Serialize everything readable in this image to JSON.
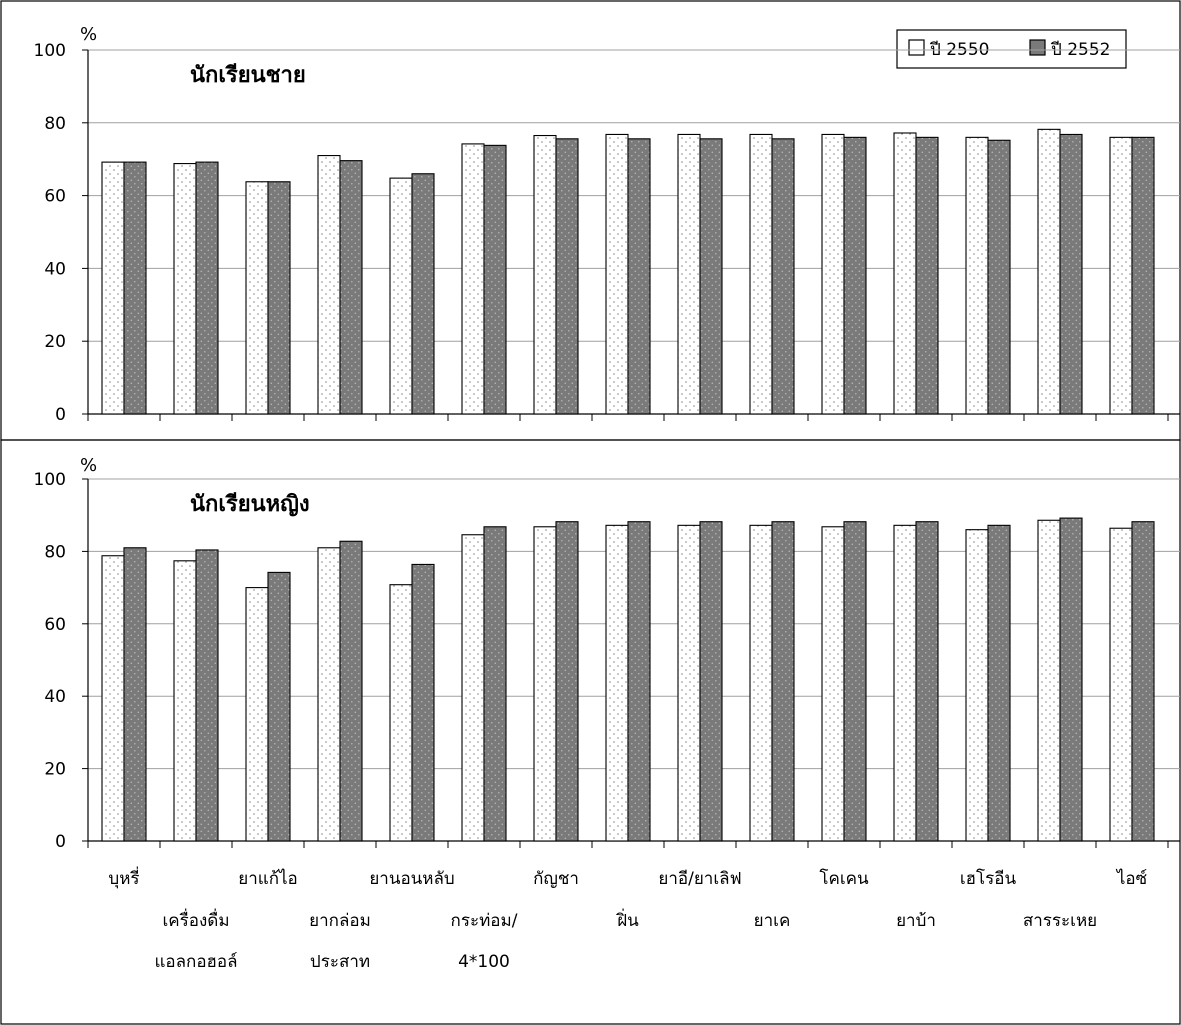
{
  "chart_data": [
    {
      "type": "bar",
      "title": "นักเรียนชาย",
      "ylabel": "%",
      "ylim": [
        0,
        100
      ],
      "yticks": [
        0,
        20,
        40,
        60,
        80,
        100
      ],
      "grid": true,
      "legend_position": "top-right",
      "categories": [
        "บุหรี่",
        "เครื่องดื่ม แอลกอฮอล์",
        "ยาแก้ไอ",
        "ยากล่อม ประสาท",
        "ยานอนหลับ",
        "กระท่อม/ 4*100",
        "กัญชา",
        "ฝิ่น",
        "ยาอี/ยาเลิฟ",
        "ยาเค",
        "โคเคน",
        "ยาบ้า",
        "เฮโรอีน",
        "สารระเหย",
        "ไอซ์"
      ],
      "series": [
        {
          "name": "ปี 2550",
          "values": [
            69.2,
            68.8,
            63.8,
            71.0,
            64.8,
            74.2,
            76.5,
            76.8,
            76.8,
            76.8,
            76.8,
            77.2,
            76.0,
            78.2,
            76.0
          ]
        },
        {
          "name": "ปี 2552",
          "values": [
            69.2,
            69.2,
            63.8,
            69.6,
            66.0,
            73.8,
            75.6,
            75.6,
            75.6,
            75.6,
            76.0,
            76.0,
            75.2,
            76.8,
            76.0
          ]
        }
      ]
    },
    {
      "type": "bar",
      "title": "นักเรียนหญิง",
      "ylabel": "%",
      "ylim": [
        0,
        100
      ],
      "yticks": [
        0,
        20,
        40,
        60,
        80,
        100
      ],
      "grid": true,
      "categories": [
        "บุหรี่",
        "เครื่องดื่ม แอลกอฮอล์",
        "ยาแก้ไอ",
        "ยากล่อม ประสาท",
        "ยานอนหลับ",
        "กระท่อม/ 4*100",
        "กัญชา",
        "ฝิ่น",
        "ยาอี/ยาเลิฟ",
        "ยาเค",
        "โคเคน",
        "ยาบ้า",
        "เฮโรอีน",
        "สารระเหย",
        "ไอซ์"
      ],
      "series": [
        {
          "name": "ปี 2550",
          "values": [
            78.8,
            77.4,
            70.0,
            81.0,
            70.8,
            84.6,
            86.8,
            87.2,
            87.2,
            87.2,
            86.8,
            87.2,
            86.0,
            88.6,
            86.4
          ]
        },
        {
          "name": "ปี 2552",
          "values": [
            81.0,
            80.4,
            74.2,
            82.8,
            76.4,
            86.8,
            88.2,
            88.2,
            88.2,
            88.2,
            88.2,
            88.2,
            87.2,
            89.2,
            88.2
          ]
        }
      ]
    }
  ],
  "legend": {
    "items": [
      "ปี 2550",
      "ปี 2552"
    ]
  },
  "category_rows": {
    "row1": [
      "บุหรี่",
      "",
      "ยาแก้ไอ",
      "",
      "ยานอนหลับ",
      "",
      "กัญชา",
      "",
      "ยาอี/ยาเลิฟ",
      "",
      "โคเคน",
      "",
      "เฮโรอีน",
      "",
      "ไอซ์"
    ],
    "row2": [
      "",
      "เครื่องดื่ม",
      "",
      "ยากล่อม",
      "",
      "กระท่อม/",
      "",
      "ฝิ่น",
      "",
      "ยาเค",
      "",
      "ยาบ้า",
      "",
      "สารระเหย",
      ""
    ],
    "row3": [
      "",
      "แอลกอฮอล์",
      "",
      "ประสาท",
      "",
      "4*100",
      "",
      "",
      "",
      "",
      "",
      "",
      "",
      "",
      ""
    ]
  },
  "colors": {
    "series1_fill": "#ffffff",
    "series1_dot": "#8a8a8a",
    "series2_fill": "#7a7a7a",
    "series2_dot": "#b8b8b8",
    "grid": "#a0a0a0",
    "frame": "#000000"
  }
}
